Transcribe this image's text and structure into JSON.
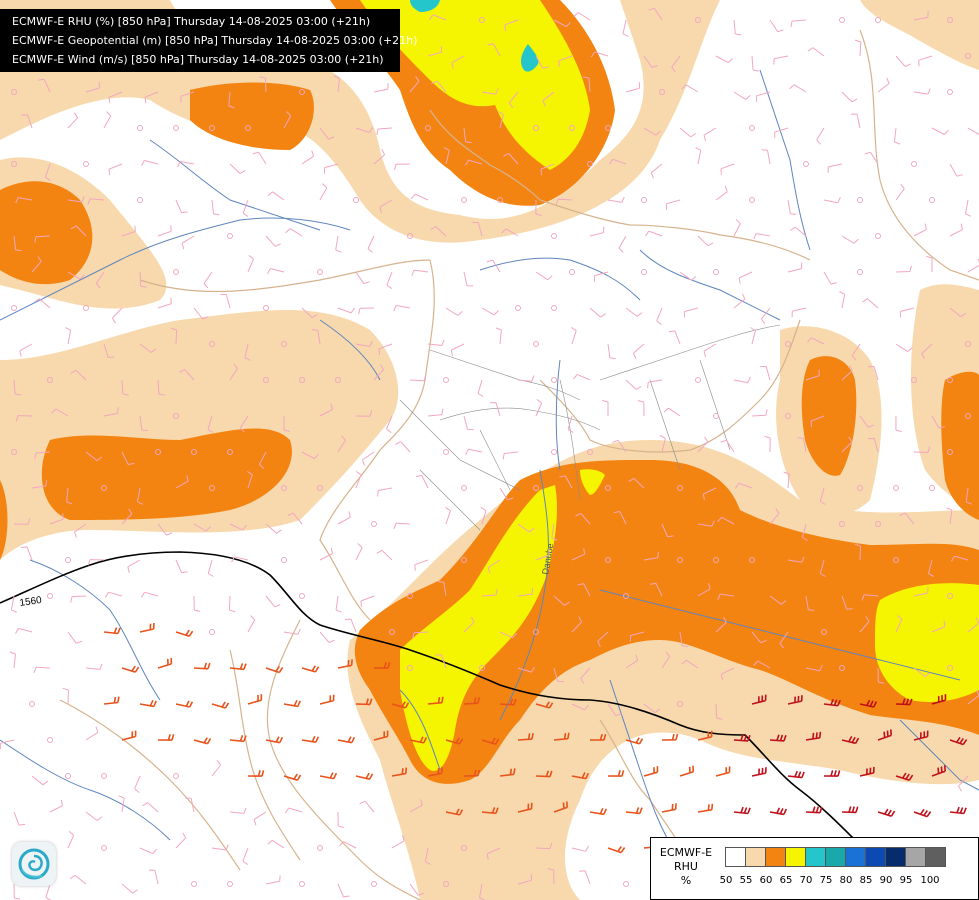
{
  "header": {
    "lines": [
      "ECMWF-E RHU (%) [850 hPa] Thursday 14-08-2025 03:00 (+21h)",
      "ECMWF-E Geopotential (m) [850 hPa] Thursday 14-08-2025 03:00 (+21h)",
      "ECMWF-E Wind (m/s) [850 hPa] Thursday 14-08-2025 03:00 (+21h)"
    ]
  },
  "map": {
    "contour_label": "1560",
    "rotated_label": "Danube",
    "colors": {
      "rhu_50_55": "#f7d9ad",
      "rhu_55_60": "#f48411",
      "rhu_60_65": "#f5f502",
      "rhu_65_70": "#24c6cc",
      "rivers": "#5f85bf",
      "borders": "#d6b38e",
      "admin_borders": "#8a8a8a",
      "wind_barbs_light": "#f2a6c0",
      "wind_barbs_strong": "#e8531b",
      "wind_barbs_strongest": "#c0101c",
      "geopotential_line": "#000000"
    }
  },
  "legend": {
    "title_lines": [
      "ECMWF-E",
      "RHU",
      "%"
    ],
    "swatch_colors": [
      "#ffffff",
      "#f7d9ad",
      "#f48411",
      "#f5f502",
      "#24c6cc",
      "#19a9ad",
      "#1a72d6",
      "#0c49b3",
      "#062c6e",
      "#a6a6a6",
      "#5f5f5f"
    ],
    "ticks": [
      "50",
      "55",
      "60",
      "65",
      "70",
      "75",
      "80",
      "85",
      "90",
      "95",
      "100"
    ]
  },
  "logo": {
    "icon": "ecmwf-logo-icon"
  }
}
